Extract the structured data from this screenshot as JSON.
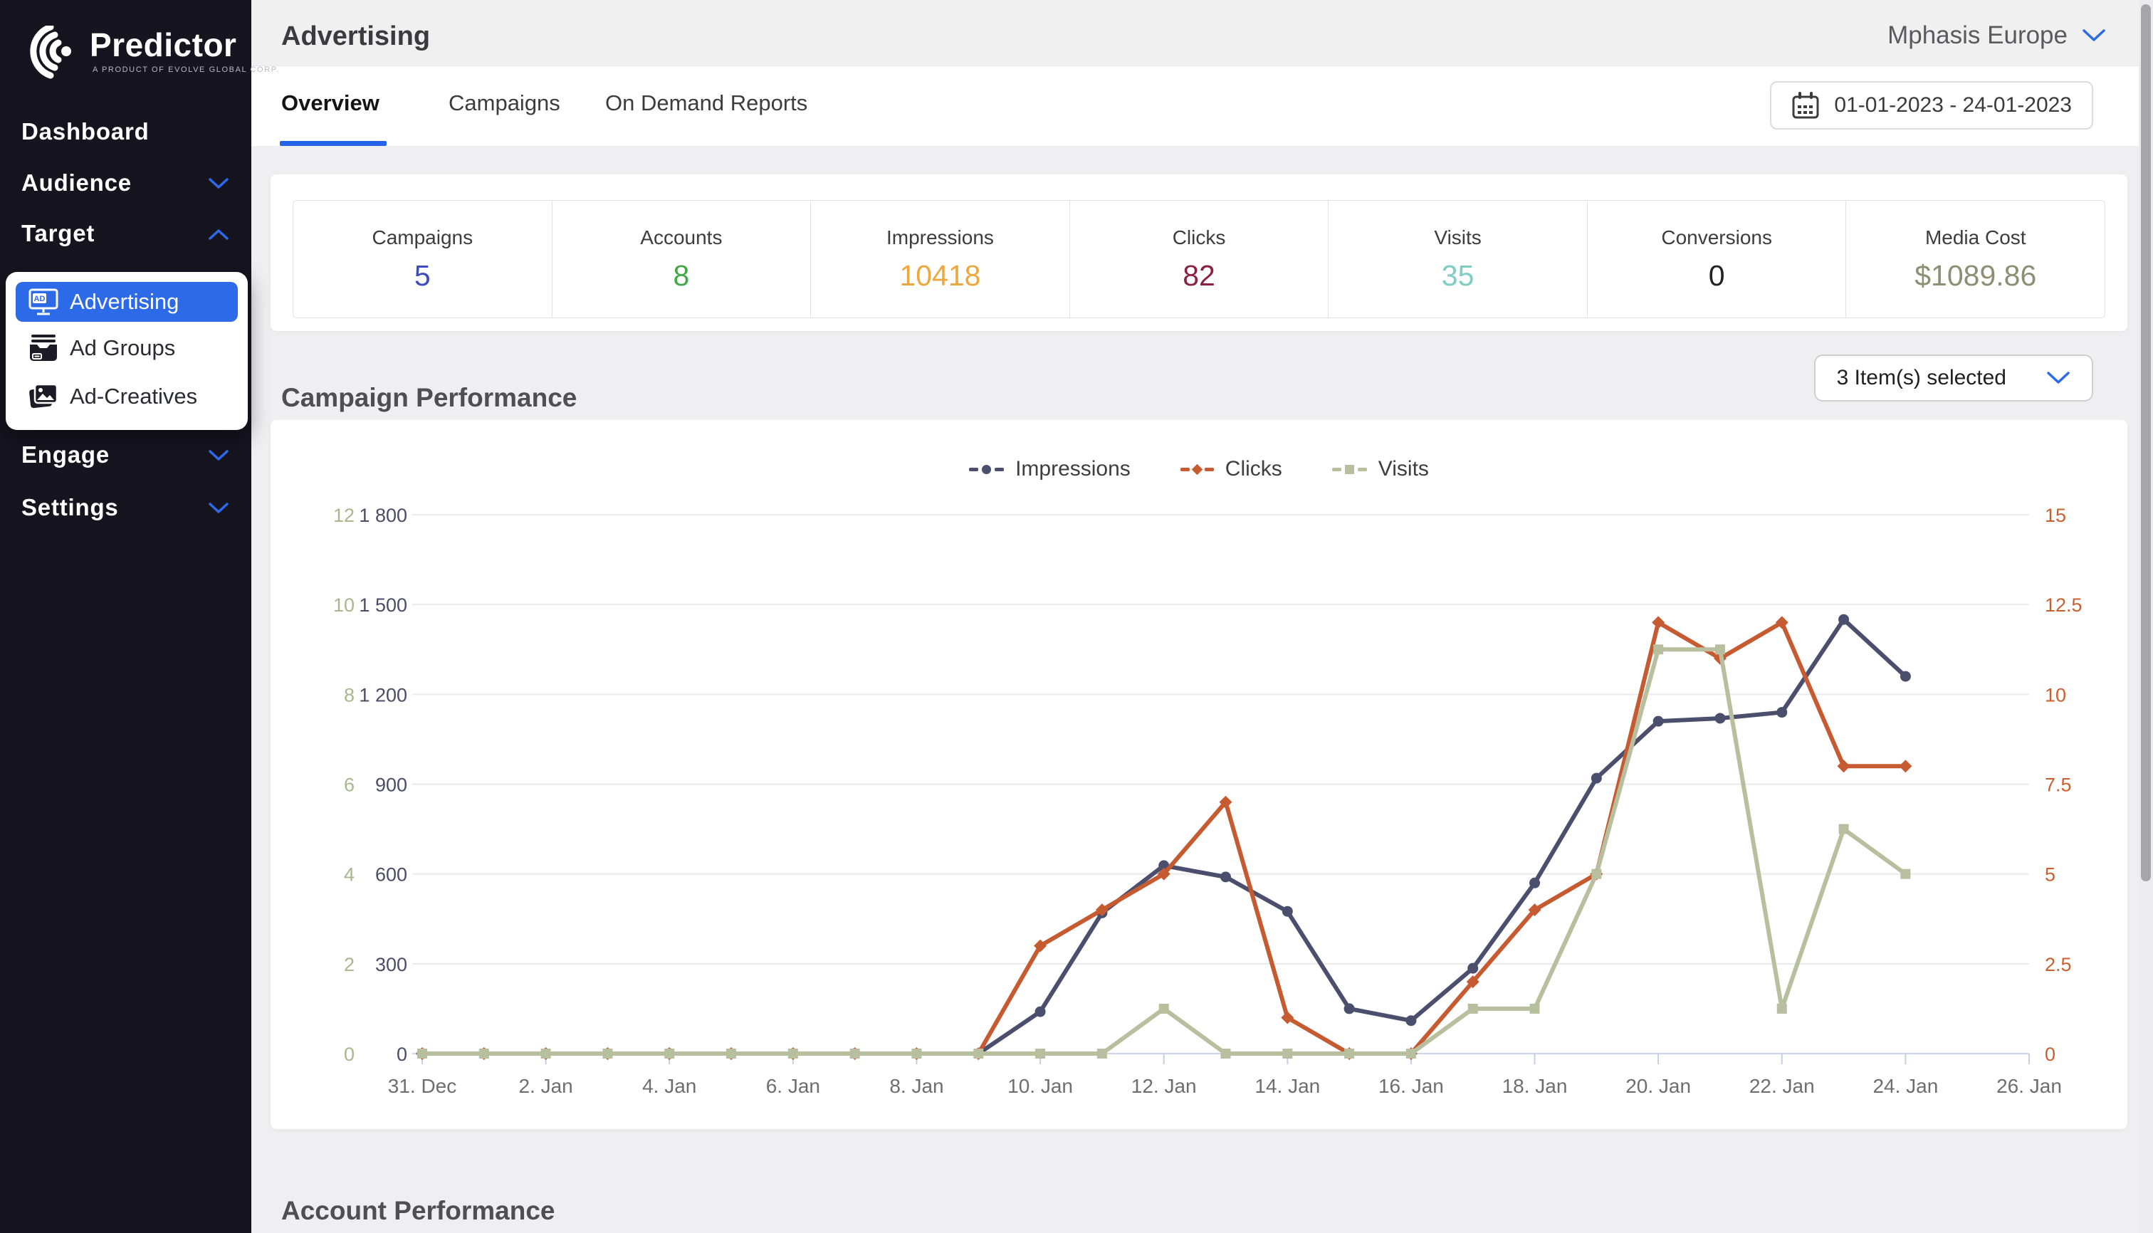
{
  "sidebar": {
    "logo": {
      "title": "Predictor",
      "subtitle": "A PRODUCT OF EVOLVE GLOBAL CORP."
    },
    "items": [
      {
        "label": "Dashboard",
        "chevron": "none"
      },
      {
        "label": "Audience",
        "chevron": "down"
      },
      {
        "label": "Target",
        "chevron": "up"
      },
      {
        "label": "Engage",
        "chevron": "down"
      },
      {
        "label": "Settings",
        "chevron": "down"
      }
    ],
    "target_submenu": [
      {
        "label": "Advertising",
        "active": true
      },
      {
        "label": "Ad Groups",
        "active": false
      },
      {
        "label": "Ad-Creatives",
        "active": false
      }
    ],
    "active_color": "#2d6ae8"
  },
  "header": {
    "title": "Advertising",
    "account": "Mphasis Europe"
  },
  "tabs": [
    {
      "label": "Overview",
      "active": true
    },
    {
      "label": "Campaigns",
      "active": false
    },
    {
      "label": "On Demand Reports",
      "active": false
    }
  ],
  "date_range": "01-01-2023 - 24-01-2023",
  "stats": [
    {
      "label": "Campaigns",
      "value": "5",
      "color": "#3c4cc0"
    },
    {
      "label": "Accounts",
      "value": "8",
      "color": "#43a847"
    },
    {
      "label": "Impressions",
      "value": "10418",
      "color": "#eda73f"
    },
    {
      "label": "Clicks",
      "value": "82",
      "color": "#8b2244"
    },
    {
      "label": "Visits",
      "value": "35",
      "color": "#80cdc5"
    },
    {
      "label": "Conversions",
      "value": "0",
      "color": "#222224"
    },
    {
      "label": "Media Cost",
      "value": "$1089.86",
      "color": "#8d8f74"
    }
  ],
  "campaign_performance": {
    "title": "Campaign Performance",
    "selector": "3 Item(s) selected"
  },
  "account_performance": {
    "title": "Account Performance"
  },
  "chart_data": {
    "type": "line",
    "title": "Campaign Performance",
    "x_span": 26,
    "x_labels": [
      "31. Dec",
      "2. Jan",
      "4. Jan",
      "6. Jan",
      "8. Jan",
      "10. Jan",
      "12. Jan",
      "14. Jan",
      "16. Jan",
      "18. Jan",
      "20. Jan",
      "22. Jan",
      "24. Jan",
      "26. Jan"
    ],
    "dates": [
      "31 Dec",
      "1 Jan",
      "2 Jan",
      "3 Jan",
      "4 Jan",
      "5 Jan",
      "6 Jan",
      "7 Jan",
      "8 Jan",
      "9 Jan",
      "10 Jan",
      "11 Jan",
      "12 Jan",
      "13 Jan",
      "14 Jan",
      "15 Jan",
      "16 Jan",
      "17 Jan",
      "18 Jan",
      "19 Jan",
      "20 Jan",
      "21 Jan",
      "22 Jan",
      "23 Jan",
      "24 Jan"
    ],
    "axes": {
      "impressions": {
        "max": 1800,
        "ticks": [
          "1 800",
          "1 500",
          "1 200",
          "900",
          "600",
          "300",
          "0"
        ],
        "color": "#4a4d68",
        "side": "left"
      },
      "visits": {
        "max": 12,
        "ticks": [
          "12",
          "10",
          "8",
          "6",
          "4",
          "2",
          "0"
        ],
        "color": "#a8b78e",
        "side": "left-outer"
      },
      "clicks": {
        "max": 15,
        "ticks": [
          "15",
          "12.5",
          "10",
          "7.5",
          "5",
          "2.5",
          "0"
        ],
        "color": "#cb5f2d",
        "side": "right"
      }
    },
    "series": [
      {
        "name": "Impressions",
        "color": "#4b4e6d",
        "marker": "circle",
        "axis": "impressions",
        "values": [
          0,
          0,
          0,
          0,
          0,
          0,
          0,
          0,
          0,
          0,
          140,
          470,
          628,
          590,
          475,
          150,
          110,
          285,
          570,
          920,
          1110,
          1120,
          1140,
          1450,
          1260
        ]
      },
      {
        "name": "Clicks",
        "color": "#c65a30",
        "marker": "diamond",
        "axis": "clicks",
        "values": [
          0,
          0,
          0,
          0,
          0,
          0,
          0,
          0,
          0,
          0,
          3,
          4,
          5,
          7,
          1,
          0,
          0,
          2,
          4,
          5,
          12,
          11,
          12,
          8,
          8
        ]
      },
      {
        "name": "Visits",
        "color": "#b8bf9e",
        "marker": "square",
        "axis": "visits",
        "values": [
          0,
          0,
          0,
          0,
          0,
          0,
          0,
          0,
          0,
          0,
          0,
          0,
          1,
          0,
          0,
          0,
          0,
          1,
          1,
          4,
          9,
          9,
          1,
          5,
          4
        ]
      }
    ],
    "legend": [
      "Impressions",
      "Clicks",
      "Visits"
    ],
    "grid": true,
    "legend_position": "top-center"
  }
}
